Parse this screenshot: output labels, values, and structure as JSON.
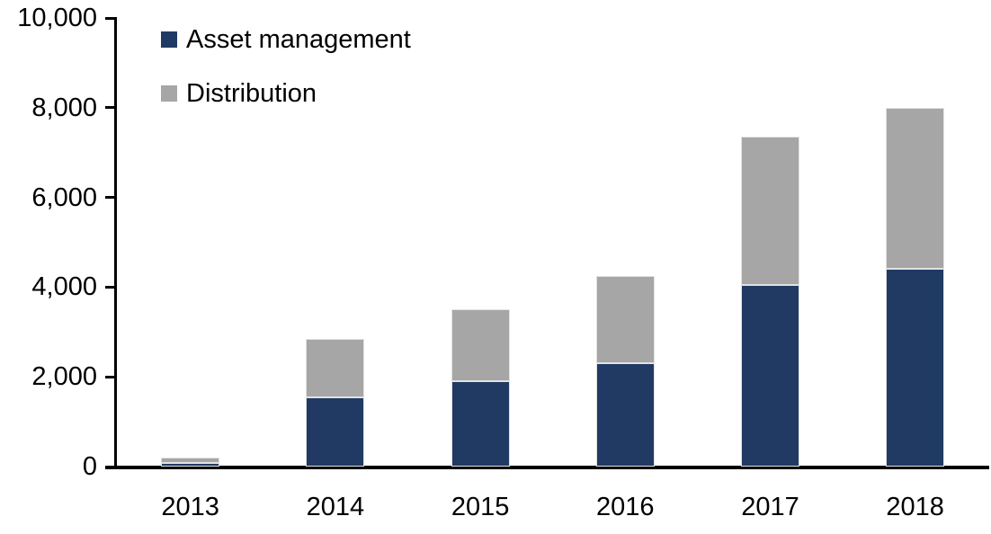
{
  "chart_data": {
    "type": "bar",
    "stacked": true,
    "title": "",
    "xlabel": "",
    "ylabel": "",
    "categories": [
      "2013",
      "2014",
      "2015",
      "2016",
      "2017",
      "2018"
    ],
    "series": [
      {
        "name": "Asset management",
        "color": "#203A64",
        "values": [
          80,
          1550,
          1900,
          2300,
          4050,
          4400
        ]
      },
      {
        "name": "Distribution",
        "color": "#A6A6A6",
        "values": [
          120,
          1300,
          1600,
          1950,
          3300,
          3600
        ]
      }
    ],
    "totals": [
      200,
      2850,
      3500,
      4250,
      7350,
      8000
    ],
    "ylim": [
      0,
      10000
    ],
    "ytick_interval": 2000,
    "yticks": [
      0,
      2000,
      4000,
      6000,
      8000,
      10000
    ],
    "ytick_labels": [
      "0",
      "2,000",
      "4,000",
      "6,000",
      "8,000",
      "10,000"
    ],
    "grid": false,
    "legend_position": "top-left",
    "axis_color": "#000000",
    "text_color": "#000000",
    "background_color": "#FFFFFF"
  }
}
